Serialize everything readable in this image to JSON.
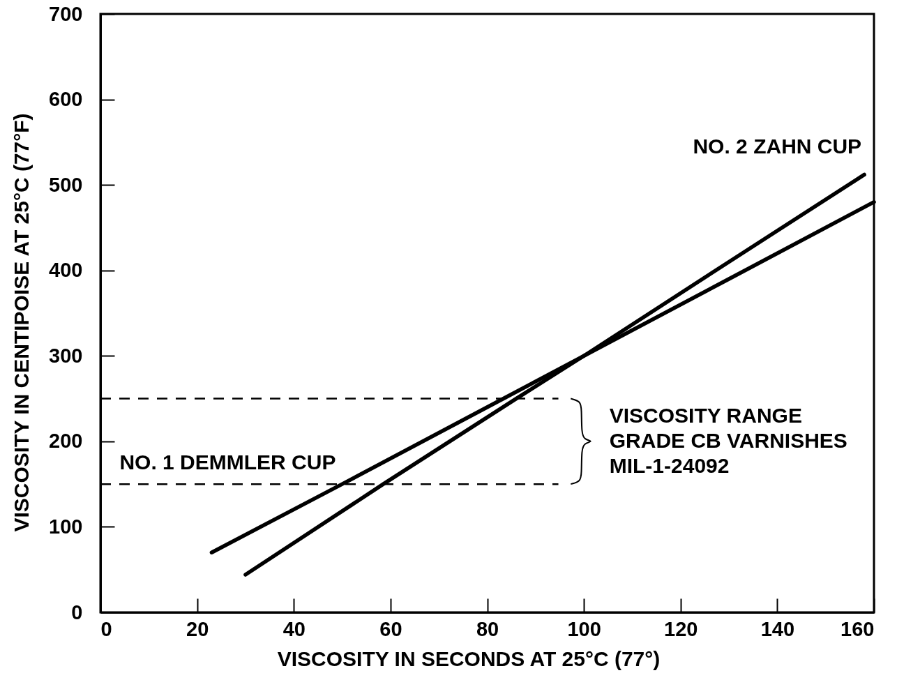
{
  "chart_data": {
    "type": "line",
    "xlabel": "VISCOSITY IN SECONDS AT 25°C (77°)",
    "ylabel": "VISCOSITY IN CENTIPOISE AT 25°C (77°F)",
    "series": [
      {
        "name": "NO. 2 ZAHN CUP",
        "color": "#000000",
        "x": [
          30,
          58.5,
          86,
          100,
          130,
          158
        ],
        "values": [
          44,
          150,
          250,
          300,
          410,
          512
        ]
      },
      {
        "name": "NO. 1 DEMMLER CUP",
        "color": "#000000",
        "x": [
          23,
          50,
          82,
          100,
          130,
          160
        ],
        "values": [
          70,
          150,
          246,
          300,
          390,
          480
        ]
      }
    ],
    "xlim": [
      0,
      160
    ],
    "ylim": [
      0,
      700
    ],
    "xticks": [
      0,
      20,
      40,
      60,
      80,
      100,
      120,
      140,
      160
    ],
    "yticks": [
      0,
      100,
      200,
      300,
      400,
      500,
      600,
      700
    ],
    "ref_lines": [
      {
        "axis": "y",
        "value": 250,
        "color": "#000000",
        "line_style": "dashed"
      },
      {
        "axis": "y",
        "value": 150,
        "color": "#000000",
        "line_style": "dashed"
      }
    ],
    "annotations": [
      "VISCOSITY RANGE\nGRADE CB VARNISHES\nMIL-1-24092"
    ]
  }
}
